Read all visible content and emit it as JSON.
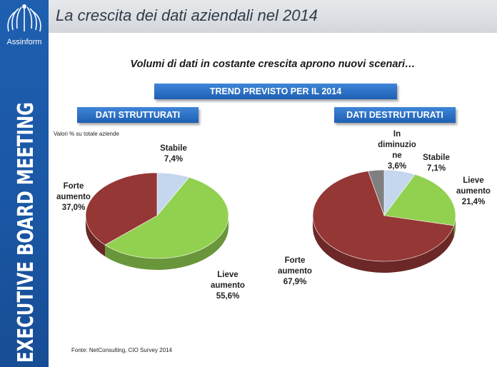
{
  "header": {
    "title": "La crescita dei dati aziendali nel 2014"
  },
  "logo": {
    "name": "Assinform"
  },
  "sidebar": {
    "vertical_text": "EXECUTIVE BOARD MEETING"
  },
  "subtitle": "Volumi di dati in costante crescita aprono nuovi scenari…",
  "main_banner": "TREND PREVISTO PER IL 2014",
  "note": "Valori % su totale aziende",
  "source": "Fonte: NetConsulting, CIO Survey 2014",
  "colors": {
    "stabile": "#c5d7ef",
    "lieve": "#92d050",
    "forte": "#953735",
    "diminuzione": "#7f7f7f",
    "banner": "#2e73c8",
    "sidebar": "#1e5fb0"
  },
  "chart_data": [
    {
      "type": "pie",
      "title": "DATI STRUTTURATI",
      "unit": "%",
      "slices": [
        {
          "label": "Stabile",
          "value": 7.4,
          "display": "7,4%",
          "color": "#c5d7ef"
        },
        {
          "label": "Lieve aumento",
          "value": 55.6,
          "display": "55,6%",
          "color": "#92d050"
        },
        {
          "label": "Forte aumento",
          "value": 37.0,
          "display": "37,0%",
          "color": "#953735"
        }
      ]
    },
    {
      "type": "pie",
      "title": "DATI DESTRUTTURATI",
      "unit": "%",
      "slices": [
        {
          "label": "Stabile",
          "value": 7.1,
          "display": "7,1%",
          "color": "#c5d7ef"
        },
        {
          "label": "Lieve aumento",
          "value": 21.4,
          "display": "21,4%",
          "color": "#92d050"
        },
        {
          "label": "Forte aumento",
          "value": 67.9,
          "display": "67,9%",
          "color": "#953735"
        },
        {
          "label": "In diminuzione",
          "value": 3.6,
          "display": "3,6%",
          "color": "#7f7f7f"
        }
      ]
    }
  ],
  "labels": {
    "left": [
      {
        "name": "Stabile",
        "value": "7,4%"
      },
      {
        "name": "Lieve\naumento",
        "value": "55,6%"
      },
      {
        "name": "Forte\naumento",
        "value": "37,0%"
      }
    ],
    "right": [
      {
        "name": "Stabile",
        "value": "7,1%"
      },
      {
        "name": "Lieve\naumento",
        "value": "21,4%"
      },
      {
        "name": "Forte\naumento",
        "value": "67,9%"
      },
      {
        "name": "In\ndiminuzio\nne",
        "value": "3,6%"
      }
    ]
  }
}
